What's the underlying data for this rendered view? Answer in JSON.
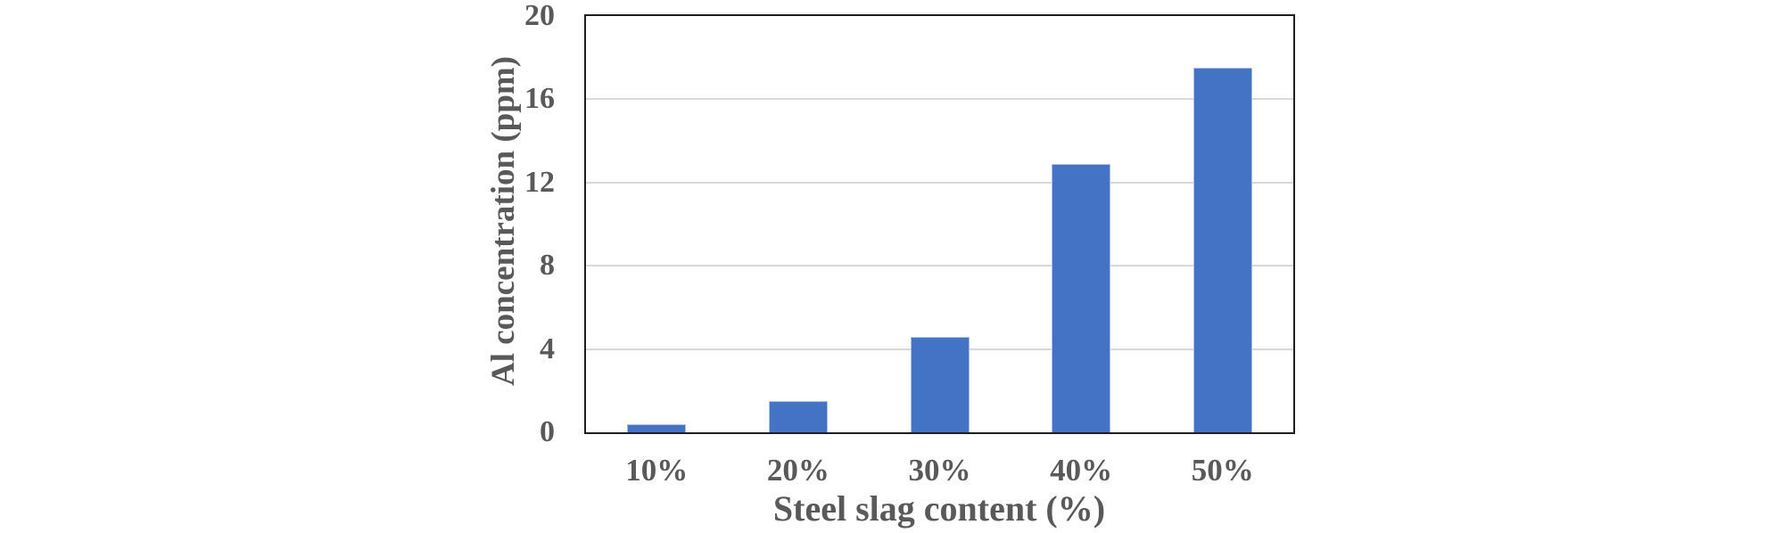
{
  "chart_data": {
    "type": "bar",
    "categories": [
      "10%",
      "20%",
      "30%",
      "40%",
      "50%"
    ],
    "values": [
      0.4,
      1.5,
      4.6,
      12.9,
      17.5
    ],
    "title": "",
    "xlabel": "Steel slag content (%)",
    "ylabel": "Al concentration (ppm)",
    "ylim": [
      0,
      20
    ],
    "yticks": [
      0,
      4,
      8,
      12,
      16,
      20
    ],
    "grid": "horizontal-on",
    "legend": "none",
    "bar_color": "#4472C4",
    "gridline_color": "#D9D9D9",
    "axis_border_color": "#1F1F1F",
    "text_color": "#595959"
  }
}
